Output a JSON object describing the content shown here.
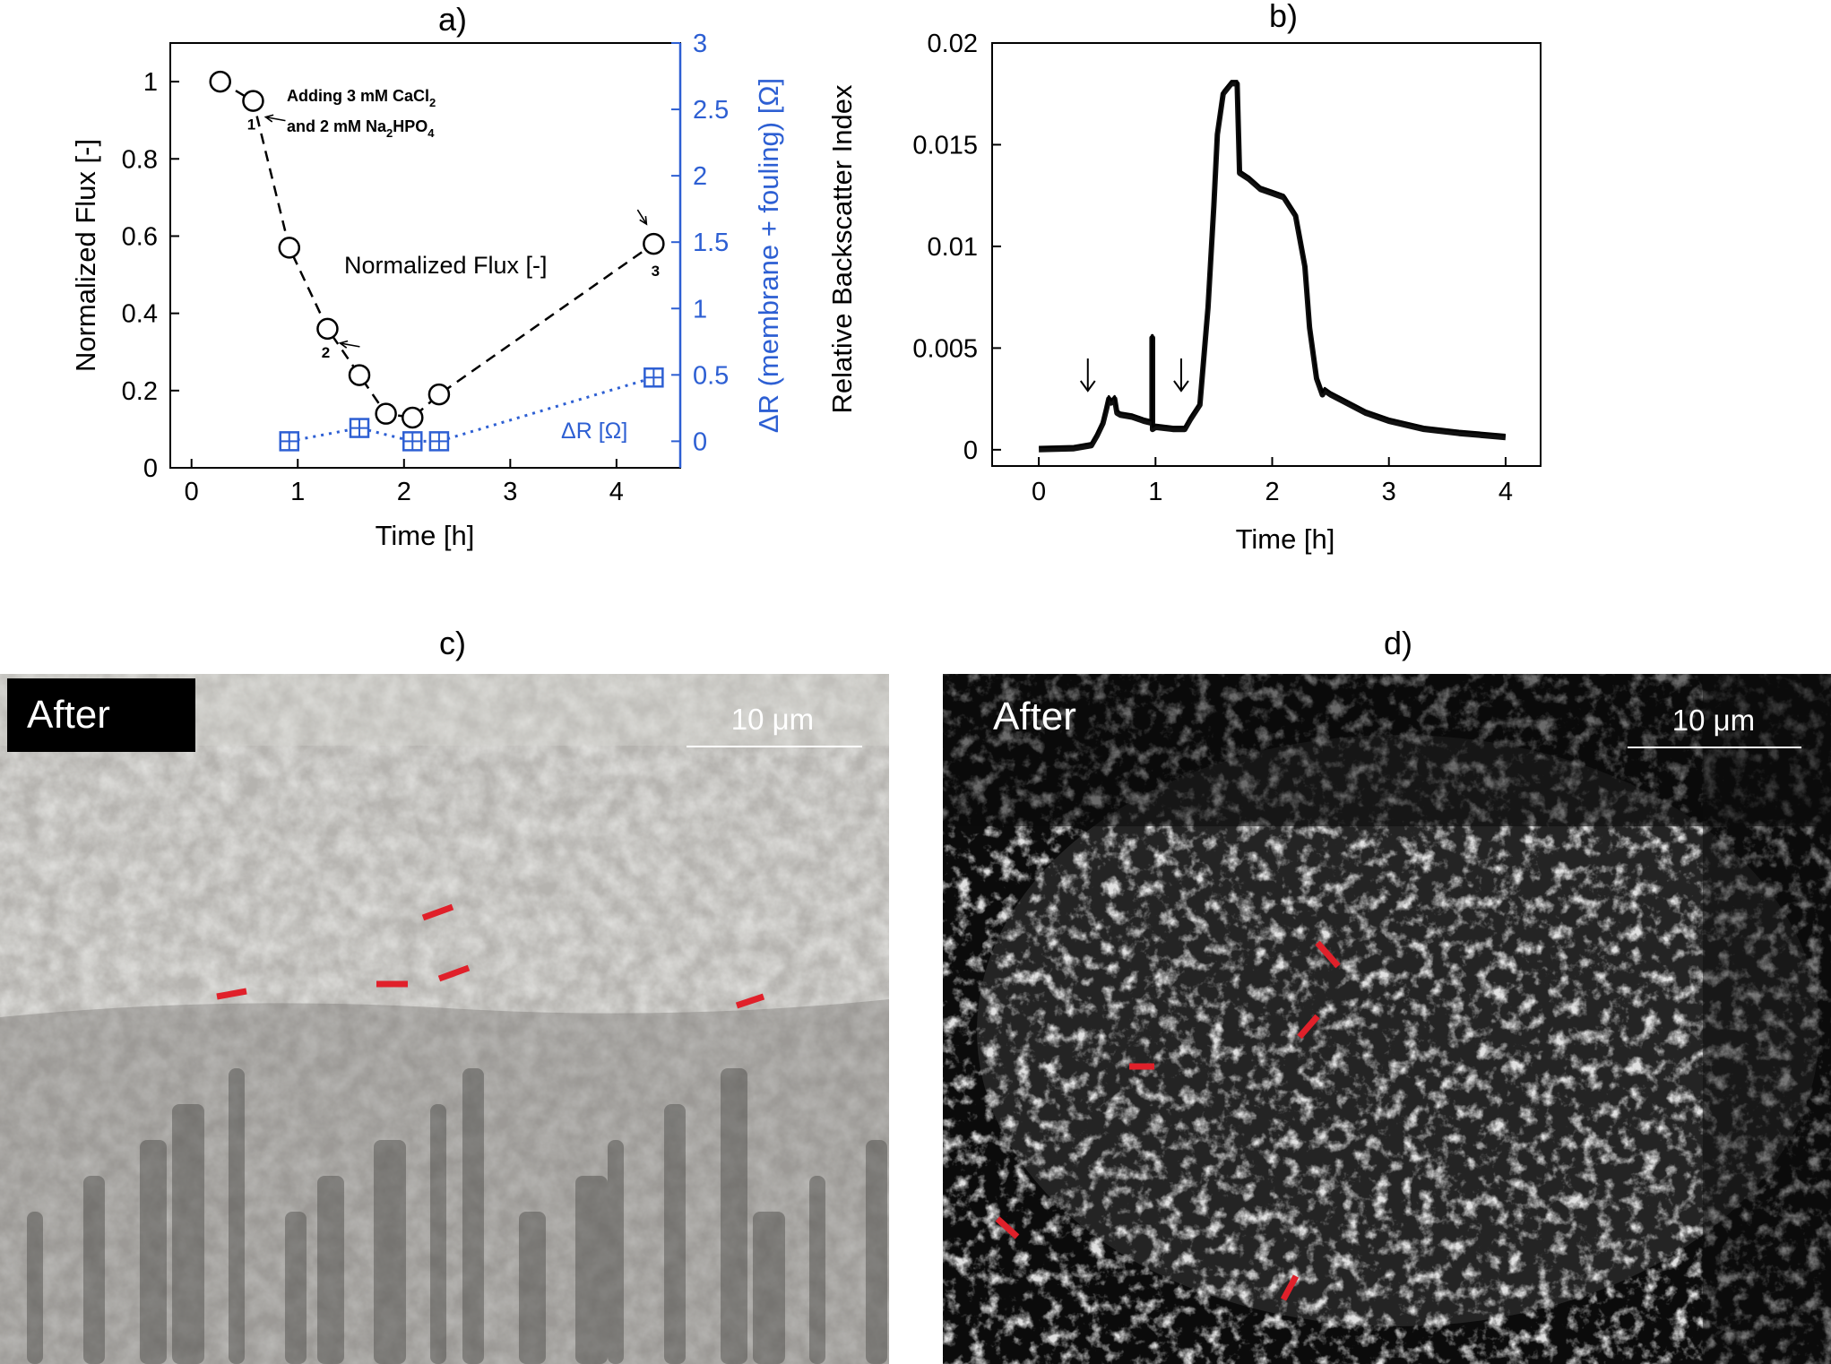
{
  "colors": {
    "flux": "#000000",
    "resistance": "#2d5fd3",
    "marker": "#e0202a"
  },
  "panels": {
    "a": {
      "label": "a)",
      "annotation_text": "Adding 3 mM CaCl",
      "annotation_sub": "2",
      "annotation_text2": "and 2 mM Na",
      "annotation_sub2": "2",
      "annotation_text2b": "HPO",
      "annotation_sub3": "4",
      "flux_label": "Normalized Flux [-]",
      "dr_label": "ΔR [Ω]",
      "pointer_labels": [
        "1",
        "2",
        "3"
      ]
    },
    "b": {
      "label": "b)"
    },
    "c": {
      "label": "c)",
      "tag": "After",
      "scale": "10 μm",
      "theme": "light"
    },
    "d": {
      "label": "d)",
      "tag": "After",
      "scale": "10 μm",
      "theme": "dark"
    }
  },
  "chart_data": [
    {
      "type": "line",
      "panel": "a",
      "xlabel": "Time [h]",
      "ylabel": "Normalized Flux [-]",
      "y2label": "ΔR (membrane + fouling) [Ω]",
      "xlim": [
        -0.2,
        4.6
      ],
      "ylim": [
        0,
        1.1
      ],
      "y2lim": [
        -0.2,
        3.0
      ],
      "xticks": [
        0,
        1,
        2,
        3,
        4
      ],
      "yticks": [
        0,
        0.2,
        0.4,
        0.6,
        0.8,
        1
      ],
      "y2ticks": [
        0,
        0.5,
        1,
        1.5,
        2,
        2.5,
        3
      ],
      "series": [
        {
          "name": "Normalized Flux [-]",
          "axis": "left",
          "marker": "circle",
          "style": "dashed",
          "x": [
            0.27,
            0.58,
            0.92,
            1.28,
            1.58,
            1.83,
            2.08,
            2.33,
            4.35
          ],
          "y": [
            1.0,
            0.95,
            0.57,
            0.36,
            0.24,
            0.14,
            0.13,
            0.19,
            0.58
          ]
        },
        {
          "name": "ΔR [Ω]",
          "axis": "right",
          "marker": "square",
          "style": "dotted",
          "x": [
            0.92,
            1.58,
            2.08,
            2.33,
            4.35
          ],
          "y": [
            0.0,
            0.1,
            0.0,
            0.0,
            0.48
          ]
        }
      ],
      "pointers": [
        {
          "label": "1",
          "x": 0.58,
          "y": 0.95
        },
        {
          "label": "2",
          "x": 1.28,
          "y": 0.36
        },
        {
          "label": "3",
          "x": 4.35,
          "y": 0.58
        }
      ]
    },
    {
      "type": "line",
      "panel": "b",
      "xlabel": "Time [h]",
      "ylabel": "Relative Backscatter Index",
      "xlim": [
        -0.4,
        4.3
      ],
      "ylim": [
        -0.0008,
        0.02
      ],
      "xticks": [
        0,
        1,
        2,
        3,
        4
      ],
      "yticks": [
        0,
        0.005,
        0.01,
        0.015,
        0.02
      ],
      "ytick_labels": [
        "0",
        "0.005",
        "0.01",
        "0.015",
        "0.02"
      ],
      "series": [
        {
          "x": [
            0.0,
            0.3,
            0.45,
            0.5,
            0.55,
            0.58,
            0.6,
            0.62,
            0.65,
            0.67,
            0.7,
            0.8,
            0.9,
            0.97,
            0.97,
            0.975,
            0.975,
            1.0,
            1.15,
            1.25,
            1.3,
            1.38,
            1.45,
            1.5,
            1.53,
            1.58,
            1.65,
            1.7,
            1.72,
            1.8,
            1.9,
            2.0,
            2.1,
            2.2,
            2.28,
            2.32,
            2.38,
            2.43,
            2.45,
            2.5,
            2.6,
            2.8,
            3.0,
            3.3,
            3.6,
            4.0
          ],
          "y": [
            0.0,
            5e-05,
            0.0002,
            0.0007,
            0.0013,
            0.002,
            0.0025,
            0.0023,
            0.0025,
            0.0018,
            0.0017,
            0.0016,
            0.0014,
            0.0013,
            0.0055,
            0.0055,
            0.001,
            0.0011,
            0.001,
            0.001,
            0.0015,
            0.0022,
            0.007,
            0.012,
            0.0155,
            0.0175,
            0.018,
            0.018,
            0.0136,
            0.0133,
            0.0128,
            0.0126,
            0.0124,
            0.0115,
            0.009,
            0.006,
            0.0035,
            0.0027,
            0.0029,
            0.0027,
            0.0024,
            0.0018,
            0.0014,
            0.001,
            0.0008,
            0.0006
          ]
        }
      ],
      "annotations": [
        {
          "type": "arrow",
          "x": 0.42
        },
        {
          "type": "arrow",
          "x": 1.22
        }
      ]
    }
  ]
}
